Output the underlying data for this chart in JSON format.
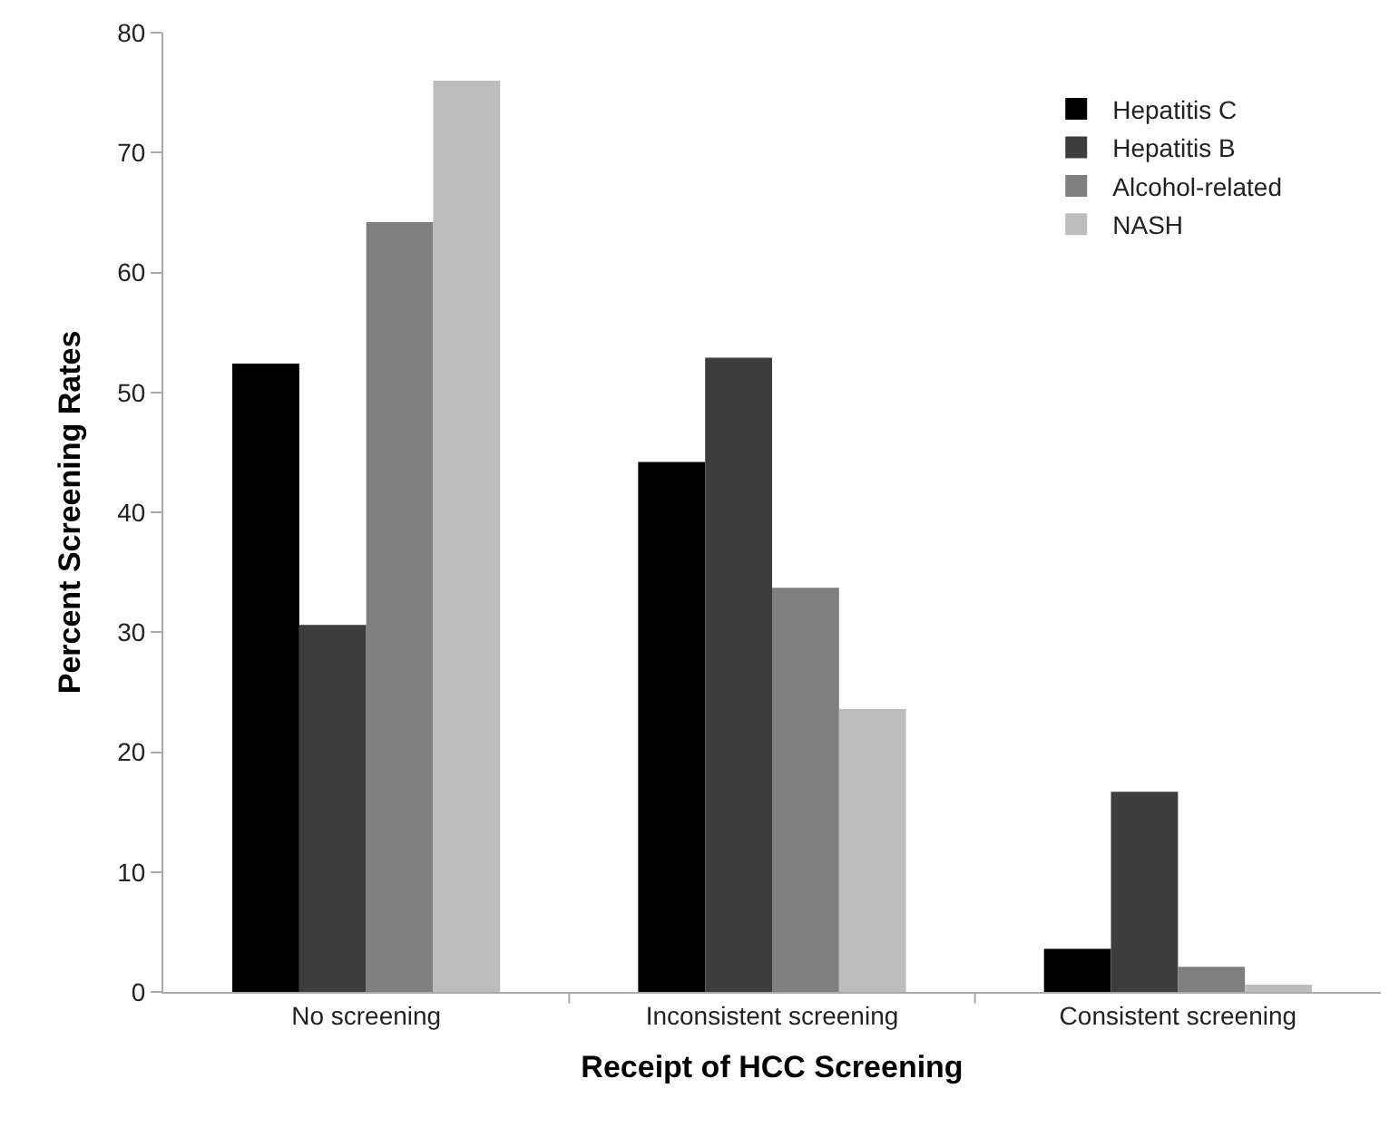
{
  "chart_data": {
    "type": "bar",
    "xlabel": "Receipt of HCC Screening",
    "ylabel": "Percent Screening Rates",
    "categories": [
      "No screening",
      "Inconsistent screening",
      "Consistent screening"
    ],
    "series": [
      {
        "name": "Hepatitis C",
        "color": "#000000",
        "values": [
          52.4,
          44.2,
          3.6
        ]
      },
      {
        "name": "Hepatitis B",
        "color": "#3d3d3d",
        "values": [
          30.6,
          52.9,
          16.7
        ]
      },
      {
        "name": "Alcohol-related",
        "color": "#7f7f7f",
        "values": [
          64.2,
          33.7,
          2.1
        ]
      },
      {
        "name": "NASH",
        "color": "#bdbdbd",
        "values": [
          76.0,
          23.6,
          0.6
        ]
      }
    ],
    "ylim": [
      0,
      80
    ],
    "yticks": [
      0,
      10,
      20,
      30,
      40,
      50,
      60,
      70,
      80
    ],
    "legend": "top right"
  }
}
